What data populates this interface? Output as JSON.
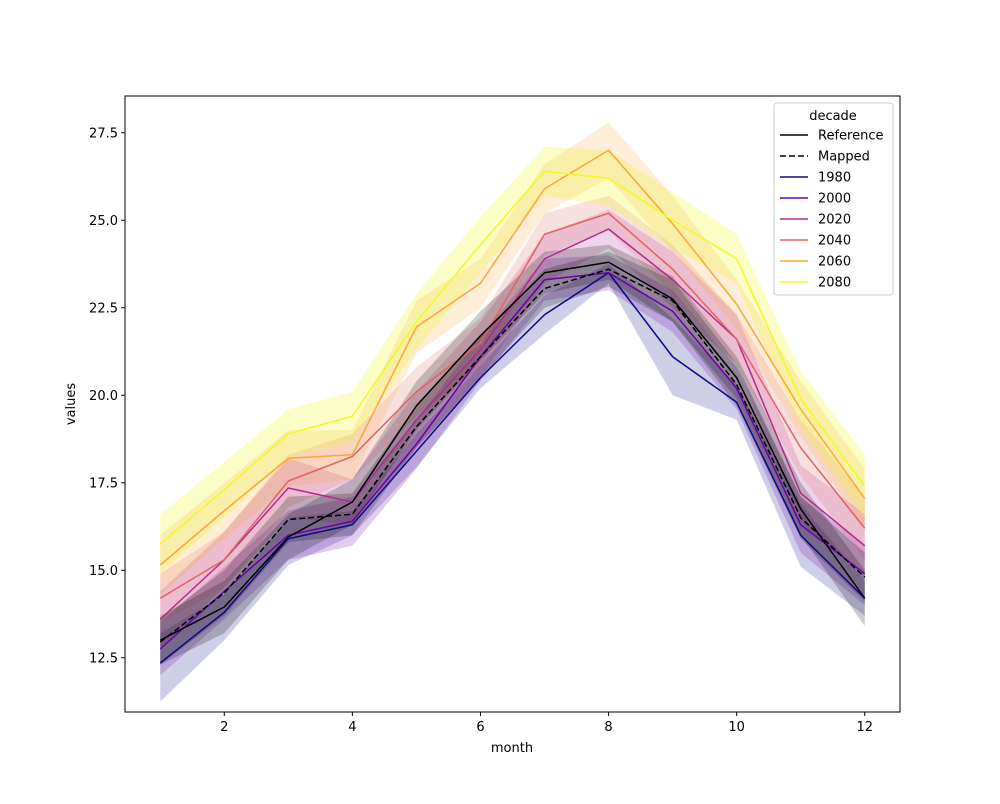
{
  "chart_data": {
    "type": "line",
    "title": "",
    "xlabel": "month",
    "ylabel": "values",
    "xlim": [
      0.45,
      12.55
    ],
    "ylim": [
      10.95,
      28.55
    ],
    "xticks": [
      "2",
      "4",
      "6",
      "8",
      "10",
      "12"
    ],
    "yticks": [
      "12.5",
      "15.0",
      "17.5",
      "20.0",
      "22.5",
      "25.0",
      "27.5"
    ],
    "x": [
      1,
      2,
      3,
      4,
      5,
      6,
      7,
      8,
      9,
      10,
      11,
      12
    ],
    "grid": false,
    "legend": {
      "title": "decade",
      "position": "top-right"
    },
    "series": [
      {
        "name": "1980",
        "color": "#0d0887",
        "dash": "solid",
        "values": [
          12.35,
          13.8,
          15.9,
          16.3,
          18.4,
          20.5,
          22.3,
          23.5,
          21.1,
          19.8,
          16.0,
          14.2
        ],
        "lower": [
          11.25,
          13.0,
          15.15,
          16.0,
          17.95,
          20.2,
          21.75,
          23.2,
          20.0,
          19.3,
          15.1,
          13.7
        ],
        "upper": [
          13.2,
          14.3,
          16.5,
          16.7,
          18.9,
          20.85,
          22.85,
          23.75,
          22.2,
          20.3,
          16.9,
          14.7
        ]
      },
      {
        "name": "2000",
        "color": "#6a00a8",
        "dash": "solid",
        "values": [
          12.75,
          14.4,
          16.0,
          16.4,
          18.6,
          21.1,
          23.3,
          23.5,
          22.4,
          20.2,
          16.3,
          14.9
        ],
        "lower": [
          12.0,
          13.6,
          15.3,
          15.7,
          17.9,
          20.4,
          22.7,
          23.0,
          21.8,
          19.6,
          15.5,
          14.0
        ],
        "upper": [
          13.5,
          15.1,
          16.7,
          17.1,
          19.3,
          21.7,
          23.9,
          24.0,
          23.0,
          20.8,
          17.1,
          15.7
        ]
      },
      {
        "name": "2020",
        "color": "#b12a90",
        "dash": "solid",
        "values": [
          13.6,
          15.3,
          17.35,
          16.95,
          19.3,
          21.3,
          23.9,
          24.75,
          23.3,
          21.6,
          17.2,
          15.7
        ],
        "lower": [
          12.8,
          14.5,
          16.5,
          16.3,
          18.5,
          20.5,
          23.2,
          24.2,
          22.5,
          20.9,
          16.4,
          14.8
        ],
        "upper": [
          14.4,
          16.1,
          18.2,
          17.6,
          20.1,
          22.1,
          24.6,
          25.3,
          24.1,
          22.3,
          18.0,
          16.6
        ]
      },
      {
        "name": "2040",
        "color": "#e16462",
        "dash": "solid",
        "values": [
          14.2,
          15.3,
          17.55,
          18.25,
          20.1,
          21.5,
          24.6,
          25.2,
          23.6,
          21.6,
          18.5,
          16.2
        ],
        "lower": [
          13.5,
          14.5,
          16.8,
          17.6,
          19.4,
          20.8,
          24.0,
          24.7,
          22.9,
          20.9,
          17.7,
          15.3
        ],
        "upper": [
          14.9,
          16.1,
          18.3,
          18.9,
          20.8,
          22.2,
          25.2,
          25.7,
          24.3,
          22.3,
          19.3,
          17.1
        ]
      },
      {
        "name": "2060",
        "color": "#fca636",
        "dash": "solid",
        "values": [
          15.15,
          16.7,
          18.2,
          18.3,
          21.95,
          23.2,
          25.9,
          27.0,
          24.9,
          22.6,
          19.6,
          17.05
        ],
        "lower": [
          14.3,
          15.9,
          17.4,
          17.6,
          21.2,
          22.5,
          25.2,
          26.2,
          24.1,
          21.9,
          18.8,
          16.2
        ],
        "upper": [
          16.0,
          17.5,
          19.0,
          19.0,
          22.7,
          23.9,
          26.6,
          27.8,
          25.7,
          23.3,
          20.4,
          17.9
        ]
      },
      {
        "name": "2080",
        "color": "#f0f921",
        "dash": "solid",
        "values": [
          15.75,
          17.3,
          18.9,
          19.4,
          22.1,
          24.3,
          26.4,
          26.2,
          25.0,
          23.9,
          19.9,
          17.4
        ],
        "lower": [
          14.9,
          16.5,
          18.2,
          18.7,
          21.3,
          23.5,
          25.7,
          25.4,
          24.2,
          23.2,
          19.1,
          16.5
        ],
        "upper": [
          16.6,
          18.1,
          19.6,
          20.1,
          22.9,
          25.1,
          27.1,
          27.0,
          25.8,
          24.6,
          20.7,
          18.3
        ]
      },
      {
        "name": "Reference",
        "color": "#000000",
        "dash": "solid",
        "values": [
          13.0,
          13.95,
          15.95,
          16.95,
          19.7,
          21.7,
          23.5,
          23.8,
          22.75,
          20.5,
          16.75,
          14.2
        ],
        "lower": [
          12.3,
          13.2,
          15.3,
          16.3,
          19.0,
          21.0,
          22.9,
          23.3,
          22.1,
          19.9,
          16.0,
          13.4
        ],
        "upper": [
          13.7,
          14.7,
          16.6,
          17.6,
          20.4,
          22.4,
          24.1,
          24.3,
          23.4,
          21.1,
          17.5,
          15.0
        ]
      },
      {
        "name": "Mapped",
        "color": "#000000",
        "dash": "dashed",
        "values": [
          12.95,
          14.35,
          16.45,
          16.6,
          19.1,
          21.1,
          23.05,
          23.6,
          22.7,
          20.3,
          16.5,
          14.8
        ],
        "lower": [
          12.3,
          13.7,
          15.8,
          16.0,
          18.5,
          20.5,
          22.5,
          23.1,
          22.1,
          19.7,
          15.9,
          14.1
        ],
        "upper": [
          13.6,
          15.0,
          17.1,
          17.2,
          19.7,
          21.7,
          23.6,
          24.1,
          23.3,
          20.9,
          17.1,
          15.5
        ]
      }
    ],
    "legend_entries": [
      {
        "label": "Reference",
        "color": "#000000",
        "dash": "solid"
      },
      {
        "label": "Mapped",
        "color": "#000000",
        "dash": "dashed"
      },
      {
        "label": "1980",
        "color": "#0d0887",
        "dash": "solid"
      },
      {
        "label": "2000",
        "color": "#6a00a8",
        "dash": "solid"
      },
      {
        "label": "2020",
        "color": "#b12a90",
        "dash": "solid"
      },
      {
        "label": "2040",
        "color": "#e16462",
        "dash": "solid"
      },
      {
        "label": "2060",
        "color": "#fca636",
        "dash": "solid"
      },
      {
        "label": "2080",
        "color": "#f0f921",
        "dash": "solid"
      }
    ]
  }
}
